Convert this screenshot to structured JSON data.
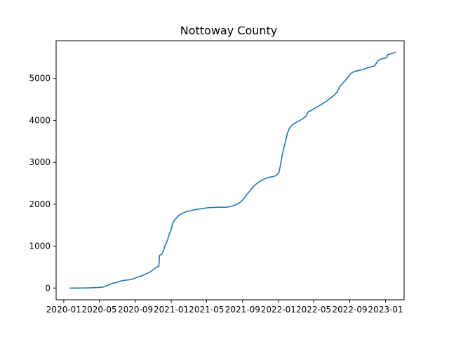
{
  "chart_data": {
    "type": "line",
    "title": "Nottoway County",
    "xlabel": "",
    "ylabel": "",
    "x_type": "date",
    "xlim": [
      "2019-12-06",
      "2023-03-05"
    ],
    "ylim": [
      -280,
      5900
    ],
    "x_ticks": [
      "2020-01",
      "2020-05",
      "2020-09",
      "2021-01",
      "2021-05",
      "2021-09",
      "2022-01",
      "2022-05",
      "2022-09",
      "2023-01"
    ],
    "y_ticks": [
      0,
      1000,
      2000,
      3000,
      4000,
      5000
    ],
    "grid": false,
    "legend": false,
    "series": [
      {
        "color": "#1f77b4",
        "points": [
          [
            "2020-01-22",
            0
          ],
          [
            "2020-02-15",
            0
          ],
          [
            "2020-03-15",
            2
          ],
          [
            "2020-04-01",
            5
          ],
          [
            "2020-04-15",
            10
          ],
          [
            "2020-05-01",
            15
          ],
          [
            "2020-05-15",
            25
          ],
          [
            "2020-05-25",
            50
          ],
          [
            "2020-06-05",
            85
          ],
          [
            "2020-06-15",
            115
          ],
          [
            "2020-06-25",
            125
          ],
          [
            "2020-07-05",
            150
          ],
          [
            "2020-07-15",
            170
          ],
          [
            "2020-07-25",
            185
          ],
          [
            "2020-08-10",
            195
          ],
          [
            "2020-08-25",
            220
          ],
          [
            "2020-09-05",
            255
          ],
          [
            "2020-09-20",
            285
          ],
          [
            "2020-10-05",
            330
          ],
          [
            "2020-10-20",
            380
          ],
          [
            "2020-11-01",
            440
          ],
          [
            "2020-11-10",
            490
          ],
          [
            "2020-11-20",
            520
          ],
          [
            "2020-11-22",
            780
          ],
          [
            "2020-11-28",
            800
          ],
          [
            "2020-12-05",
            870
          ],
          [
            "2020-12-10",
            1000
          ],
          [
            "2020-12-18",
            1120
          ],
          [
            "2020-12-25",
            1280
          ],
          [
            "2021-01-01",
            1400
          ],
          [
            "2021-01-05",
            1530
          ],
          [
            "2021-01-12",
            1620
          ],
          [
            "2021-01-20",
            1680
          ],
          [
            "2021-01-28",
            1740
          ],
          [
            "2021-02-10",
            1790
          ],
          [
            "2021-02-25",
            1830
          ],
          [
            "2021-03-15",
            1860
          ],
          [
            "2021-04-01",
            1880
          ],
          [
            "2021-04-20",
            1900
          ],
          [
            "2021-05-10",
            1920
          ],
          [
            "2021-06-01",
            1925
          ],
          [
            "2021-06-20",
            1928
          ],
          [
            "2021-07-10",
            1930
          ],
          [
            "2021-07-25",
            1950
          ],
          [
            "2021-08-10",
            1990
          ],
          [
            "2021-08-25",
            2050
          ],
          [
            "2021-09-05",
            2130
          ],
          [
            "2021-09-15",
            2230
          ],
          [
            "2021-09-25",
            2310
          ],
          [
            "2021-10-05",
            2400
          ],
          [
            "2021-10-15",
            2470
          ],
          [
            "2021-10-25",
            2520
          ],
          [
            "2021-11-05",
            2570
          ],
          [
            "2021-11-20",
            2620
          ],
          [
            "2021-12-05",
            2650
          ],
          [
            "2021-12-20",
            2670
          ],
          [
            "2021-12-28",
            2710
          ],
          [
            "2022-01-03",
            2760
          ],
          [
            "2022-01-07",
            2900
          ],
          [
            "2022-01-12",
            3100
          ],
          [
            "2022-01-18",
            3300
          ],
          [
            "2022-01-25",
            3500
          ],
          [
            "2022-02-01",
            3700
          ],
          [
            "2022-02-08",
            3820
          ],
          [
            "2022-02-15",
            3880
          ],
          [
            "2022-02-25",
            3930
          ],
          [
            "2022-03-10",
            3980
          ],
          [
            "2022-03-25",
            4040
          ],
          [
            "2022-04-05",
            4100
          ],
          [
            "2022-04-12",
            4200
          ],
          [
            "2022-04-25",
            4250
          ],
          [
            "2022-05-10",
            4310
          ],
          [
            "2022-05-25",
            4370
          ],
          [
            "2022-06-10",
            4440
          ],
          [
            "2022-06-25",
            4520
          ],
          [
            "2022-07-10",
            4600
          ],
          [
            "2022-07-20",
            4680
          ],
          [
            "2022-07-28",
            4800
          ],
          [
            "2022-08-10",
            4900
          ],
          [
            "2022-08-25",
            5020
          ],
          [
            "2022-09-05",
            5120
          ],
          [
            "2022-09-15",
            5160
          ],
          [
            "2022-09-30",
            5190
          ],
          [
            "2022-10-15",
            5210
          ],
          [
            "2022-10-30",
            5250
          ],
          [
            "2022-11-15",
            5280
          ],
          [
            "2022-11-25",
            5300
          ],
          [
            "2022-12-05",
            5420
          ],
          [
            "2022-12-15",
            5460
          ],
          [
            "2022-12-25",
            5480
          ],
          [
            "2023-01-05",
            5490
          ],
          [
            "2023-01-07",
            5560
          ],
          [
            "2023-01-15",
            5580
          ],
          [
            "2023-01-25",
            5600
          ],
          [
            "2023-02-05",
            5630
          ]
        ]
      }
    ]
  }
}
